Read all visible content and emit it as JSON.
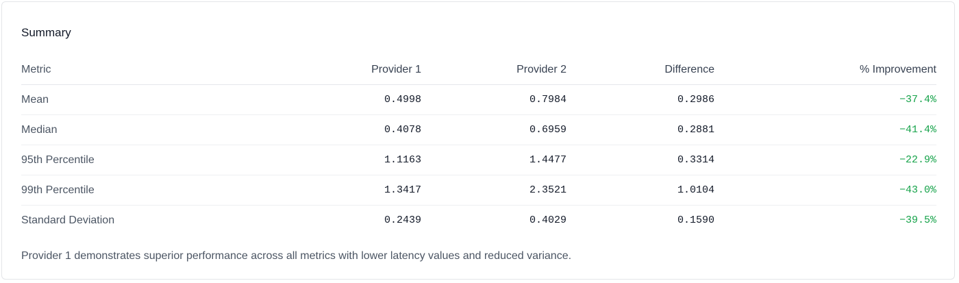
{
  "title": "Summary",
  "table": {
    "header": [
      "Metric",
      "Provider 1",
      "Provider 2",
      "Difference",
      "% Improvement"
    ],
    "rows": [
      [
        "Mean",
        "0.4998",
        "0.7984",
        "0.2986",
        "−37.4%"
      ],
      [
        "Median",
        "0.4078",
        "0.6959",
        "0.2881",
        "−41.4%"
      ],
      [
        "95th Percentile",
        "1.1163",
        "1.4477",
        "0.3314",
        "−22.9%"
      ],
      [
        "99th Percentile",
        "1.3417",
        "2.3521",
        "1.0104",
        "−43.0%"
      ],
      [
        "Standard Deviation",
        "0.2439",
        "0.4029",
        "0.1590",
        "−39.5%"
      ]
    ]
  },
  "note": "Provider 1 demonstrates superior performance across all metrics with lower latency values and reduced variance."
}
